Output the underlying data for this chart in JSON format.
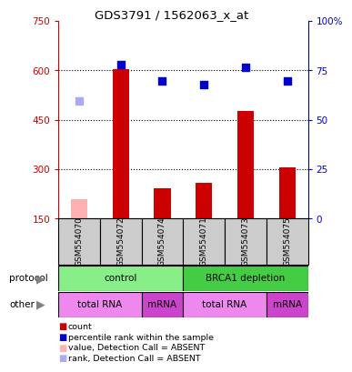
{
  "title": "GDS3791 / 1562063_x_at",
  "samples": [
    "GSM554070",
    "GSM554072",
    "GSM554074",
    "GSM554071",
    "GSM554073",
    "GSM554075"
  ],
  "bar_values": [
    null,
    605,
    243,
    258,
    478,
    307
  ],
  "bar_color": "#cc0000",
  "absent_bar_values": [
    210,
    null,
    null,
    null,
    null,
    null
  ],
  "absent_bar_color": "#ffb0b0",
  "dot_values": [
    null,
    618,
    568,
    558,
    610,
    568
  ],
  "dot_color": "#0000cc",
  "absent_dot_values": [
    508,
    null,
    null,
    null,
    null,
    null
  ],
  "absent_dot_color": "#aaaaee",
  "ylim_left": [
    150,
    750
  ],
  "ylim_right": [
    0,
    100
  ],
  "yticks_left": [
    150,
    300,
    450,
    600,
    750
  ],
  "ytick_labels_left": [
    "150",
    "300",
    "450",
    "600",
    "750"
  ],
  "yticks_right": [
    0,
    25,
    50,
    75,
    100
  ],
  "ytick_labels_right": [
    "0",
    "25",
    "50",
    "75",
    "100%"
  ],
  "left_axis_color": "#cc0000",
  "right_axis_color": "#0000cc",
  "grid_lines": [
    300,
    450,
    600
  ],
  "protocol_groups": [
    {
      "label": "control",
      "start": 0,
      "end": 3,
      "color": "#88ee88"
    },
    {
      "label": "BRCA1 depletion",
      "start": 3,
      "end": 6,
      "color": "#44cc44"
    }
  ],
  "other_groups": [
    {
      "label": "total RNA",
      "start": 0,
      "end": 2,
      "color": "#ee88ee"
    },
    {
      "label": "mRNA",
      "start": 2,
      "end": 3,
      "color": "#cc44cc"
    },
    {
      "label": "total RNA",
      "start": 3,
      "end": 5,
      "color": "#ee88ee"
    },
    {
      "label": "mRNA",
      "start": 5,
      "end": 6,
      "color": "#cc44cc"
    }
  ],
  "sample_box_color": "#cccccc",
  "legend_colors": [
    "#cc0000",
    "#0000cc",
    "#ffb0b0",
    "#aaaaee"
  ],
  "legend_labels": [
    "count",
    "percentile rank within the sample",
    "value, Detection Call = ABSENT",
    "rank, Detection Call = ABSENT"
  ],
  "bar_width": 0.4,
  "dot_size": 28
}
